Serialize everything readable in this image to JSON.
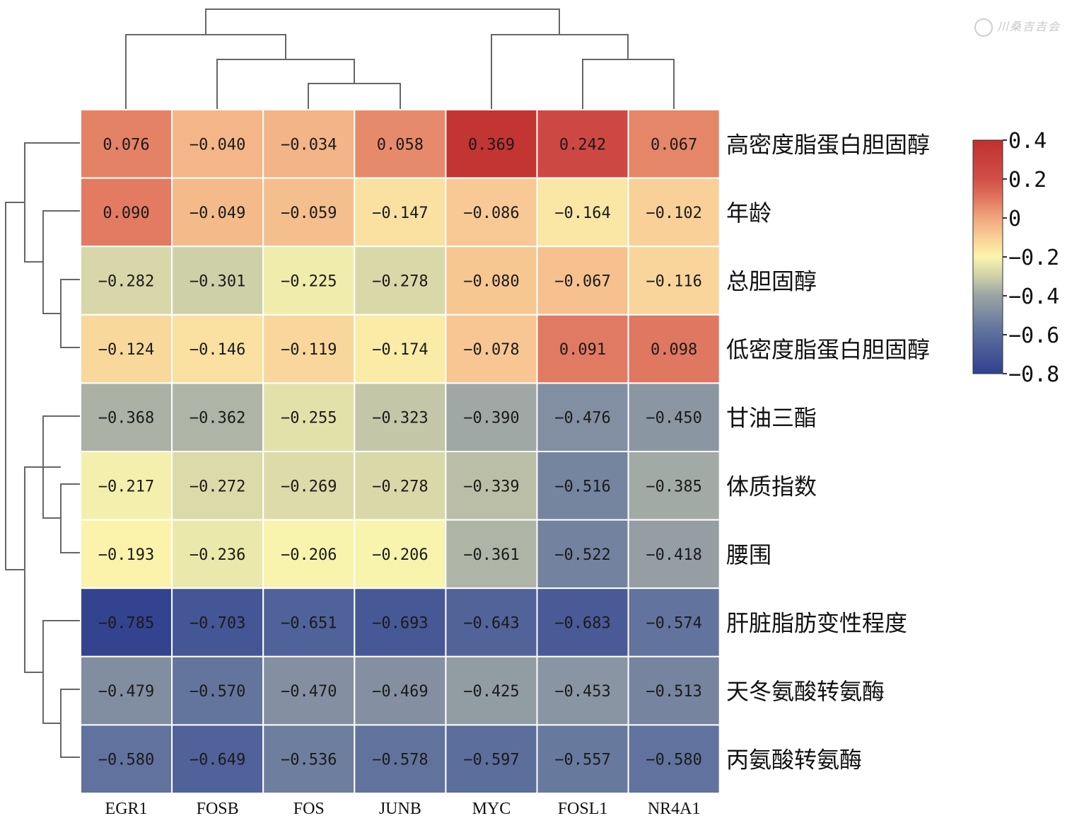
{
  "watermark": {
    "text": "川桑吉吉会"
  },
  "colors": {
    "scale": [
      [
        -0.8,
        "#30408f"
      ],
      [
        -0.6,
        "#5a6d9c"
      ],
      [
        -0.4,
        "#9aa3a4"
      ],
      [
        -0.3,
        "#cfd0a8"
      ],
      [
        -0.2,
        "#fbf5ad"
      ],
      [
        -0.1,
        "#f9cf97"
      ],
      [
        0.0,
        "#f0a67e"
      ],
      [
        0.1,
        "#e0765f"
      ],
      [
        0.2,
        "#d24f48"
      ],
      [
        0.4,
        "#c0302e"
      ]
    ]
  },
  "chart_data": {
    "type": "heatmap",
    "rows": [
      "高密度脂蛋白胆固醇",
      "年龄",
      "总胆固醇",
      "低密度脂蛋白胆固醇",
      "甘油三酯",
      "体质指数",
      "腰围",
      "肝脏脂肪变性程度",
      "天冬氨酸转氨酶",
      "丙氨酸转氨酶"
    ],
    "columns": [
      "EGR1",
      "FOSB",
      "FOS",
      "JUNB",
      "MYC",
      "FOSL1",
      "NR4A1"
    ],
    "values": [
      [
        0.076,
        -0.04,
        -0.034,
        0.058,
        0.369,
        0.242,
        0.067
      ],
      [
        0.09,
        -0.049,
        -0.059,
        -0.147,
        -0.086,
        -0.164,
        -0.102
      ],
      [
        -0.282,
        -0.301,
        -0.225,
        -0.278,
        -0.08,
        -0.067,
        -0.116
      ],
      [
        -0.124,
        -0.146,
        -0.119,
        -0.174,
        -0.078,
        0.091,
        0.098
      ],
      [
        -0.368,
        -0.362,
        -0.255,
        -0.323,
        -0.39,
        -0.476,
        -0.45
      ],
      [
        -0.217,
        -0.272,
        -0.269,
        -0.278,
        -0.339,
        -0.516,
        -0.385
      ],
      [
        -0.193,
        -0.236,
        -0.206,
        -0.206,
        -0.361,
        -0.522,
        -0.418
      ],
      [
        -0.785,
        -0.703,
        -0.651,
        -0.693,
        -0.643,
        -0.683,
        -0.574
      ],
      [
        -0.479,
        -0.57,
        -0.47,
        -0.469,
        -0.425,
        -0.453,
        -0.513
      ],
      [
        -0.58,
        -0.649,
        -0.536,
        -0.578,
        -0.597,
        -0.557,
        -0.58
      ]
    ],
    "value_labels": [
      [
        "0.076",
        "−0.040",
        "−0.034",
        "0.058",
        "0.369",
        "0.242",
        "0.067"
      ],
      [
        "0.090",
        "−0.049",
        "−0.059",
        "−0.147",
        "−0.086",
        "−0.164",
        "−0.102"
      ],
      [
        "−0.282",
        "−0.301",
        "−0.225",
        "−0.278",
        "−0.080",
        "−0.067",
        "−0.116"
      ],
      [
        "−0.124",
        "−0.146",
        "−0.119",
        "−0.174",
        "−0.078",
        "0.091",
        "0.098"
      ],
      [
        "−0.368",
        "−0.362",
        "−0.255",
        "−0.323",
        "−0.390",
        "−0.476",
        "−0.450"
      ],
      [
        "−0.217",
        "−0.272",
        "−0.269",
        "−0.278",
        "−0.339",
        "−0.516",
        "−0.385"
      ],
      [
        "−0.193",
        "−0.236",
        "−0.206",
        "−0.206",
        "−0.361",
        "−0.522",
        "−0.418"
      ],
      [
        "−0.785",
        "−0.703",
        "−0.651",
        "−0.693",
        "−0.643",
        "−0.683",
        "−0.574"
      ],
      [
        "−0.479",
        "−0.570",
        "−0.470",
        "−0.469",
        "−0.425",
        "−0.453",
        "−0.513"
      ],
      [
        "−0.580",
        "−0.649",
        "−0.536",
        "−0.578",
        "−0.597",
        "−0.557",
        "−0.580"
      ]
    ],
    "colorbar": {
      "range": [
        -0.8,
        0.4
      ],
      "ticks": [
        0.4,
        0.2,
        0,
        -0.2,
        -0.4,
        -0.6,
        -0.8
      ],
      "tick_labels": [
        "0.4",
        "0.2",
        "0",
        "−0.2",
        "−0.4",
        "−0.6",
        "−0.8"
      ],
      "placement": "right"
    },
    "dendrograms": {
      "columns": "top",
      "rows": "left"
    }
  }
}
